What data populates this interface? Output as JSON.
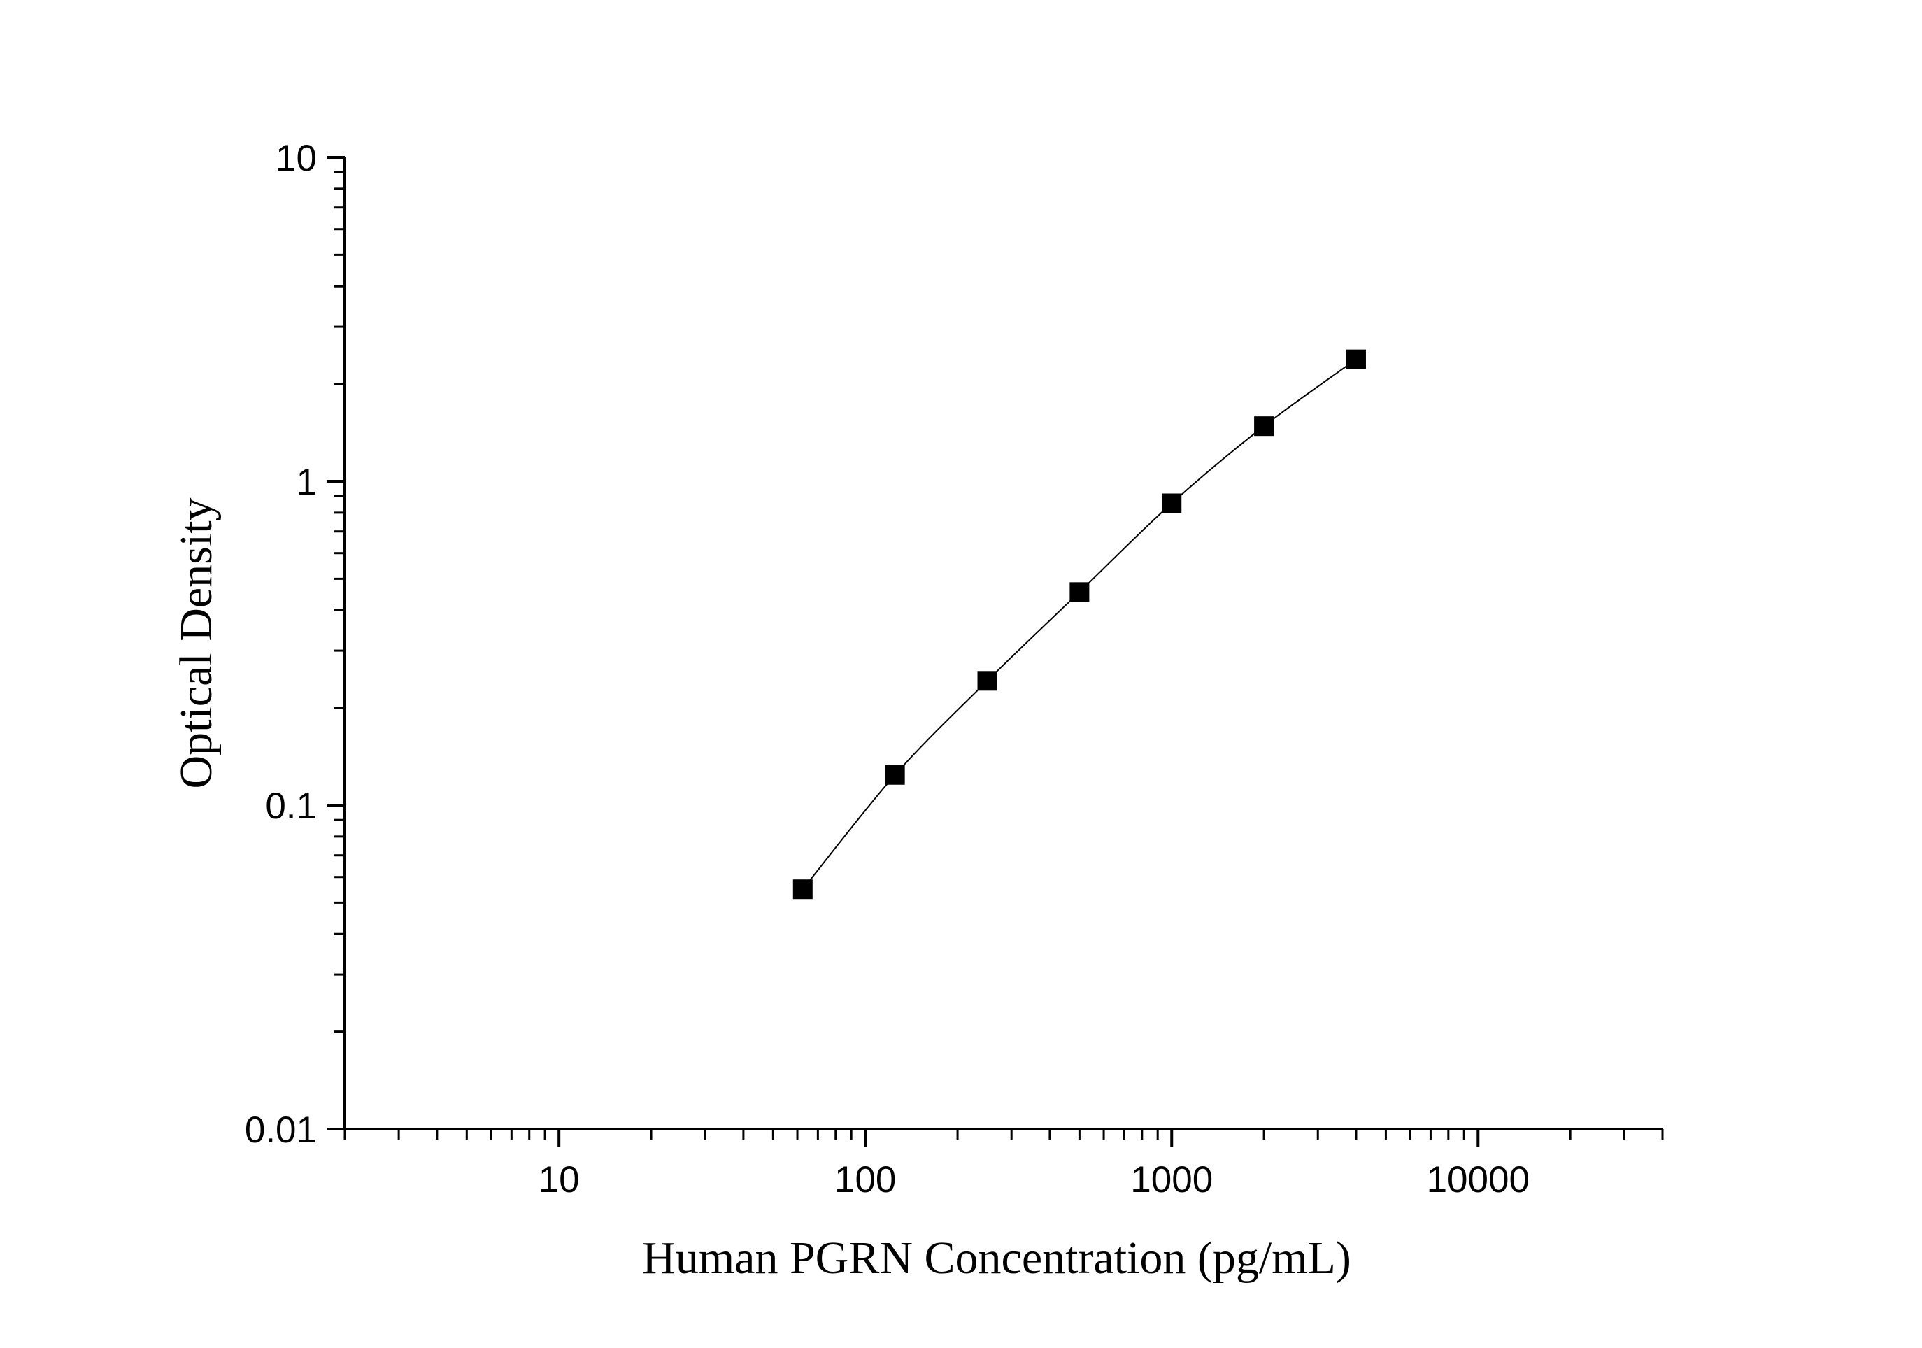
{
  "chart_data": {
    "type": "scatter",
    "title": "",
    "xlabel": "Human PGRN Concentration (pg/mL)",
    "ylabel": "Optical Density",
    "xscale": "log",
    "yscale": "log",
    "xlim": [
      2,
      40000
    ],
    "ylim": [
      0.01,
      10
    ],
    "grid": false,
    "legend": "none",
    "x_ticks": [
      10,
      100,
      1000,
      10000
    ],
    "x_tick_labels": [
      "10",
      "100",
      "1000",
      "10000"
    ],
    "y_ticks": [
      0.01,
      0.1,
      1,
      10
    ],
    "y_tick_labels": [
      "0.01",
      "0.1",
      "1",
      "10"
    ],
    "series": [
      {
        "marker": "square",
        "fit_line": "smooth",
        "x": [
          62.5,
          125,
          250,
          500,
          1000,
          2000,
          4000
        ],
        "y": [
          0.055,
          0.124,
          0.242,
          0.455,
          0.855,
          1.48,
          2.38
        ]
      }
    ],
    "colors": {
      "axis": "#000000",
      "marker": "#000000",
      "line": "#000000"
    }
  }
}
